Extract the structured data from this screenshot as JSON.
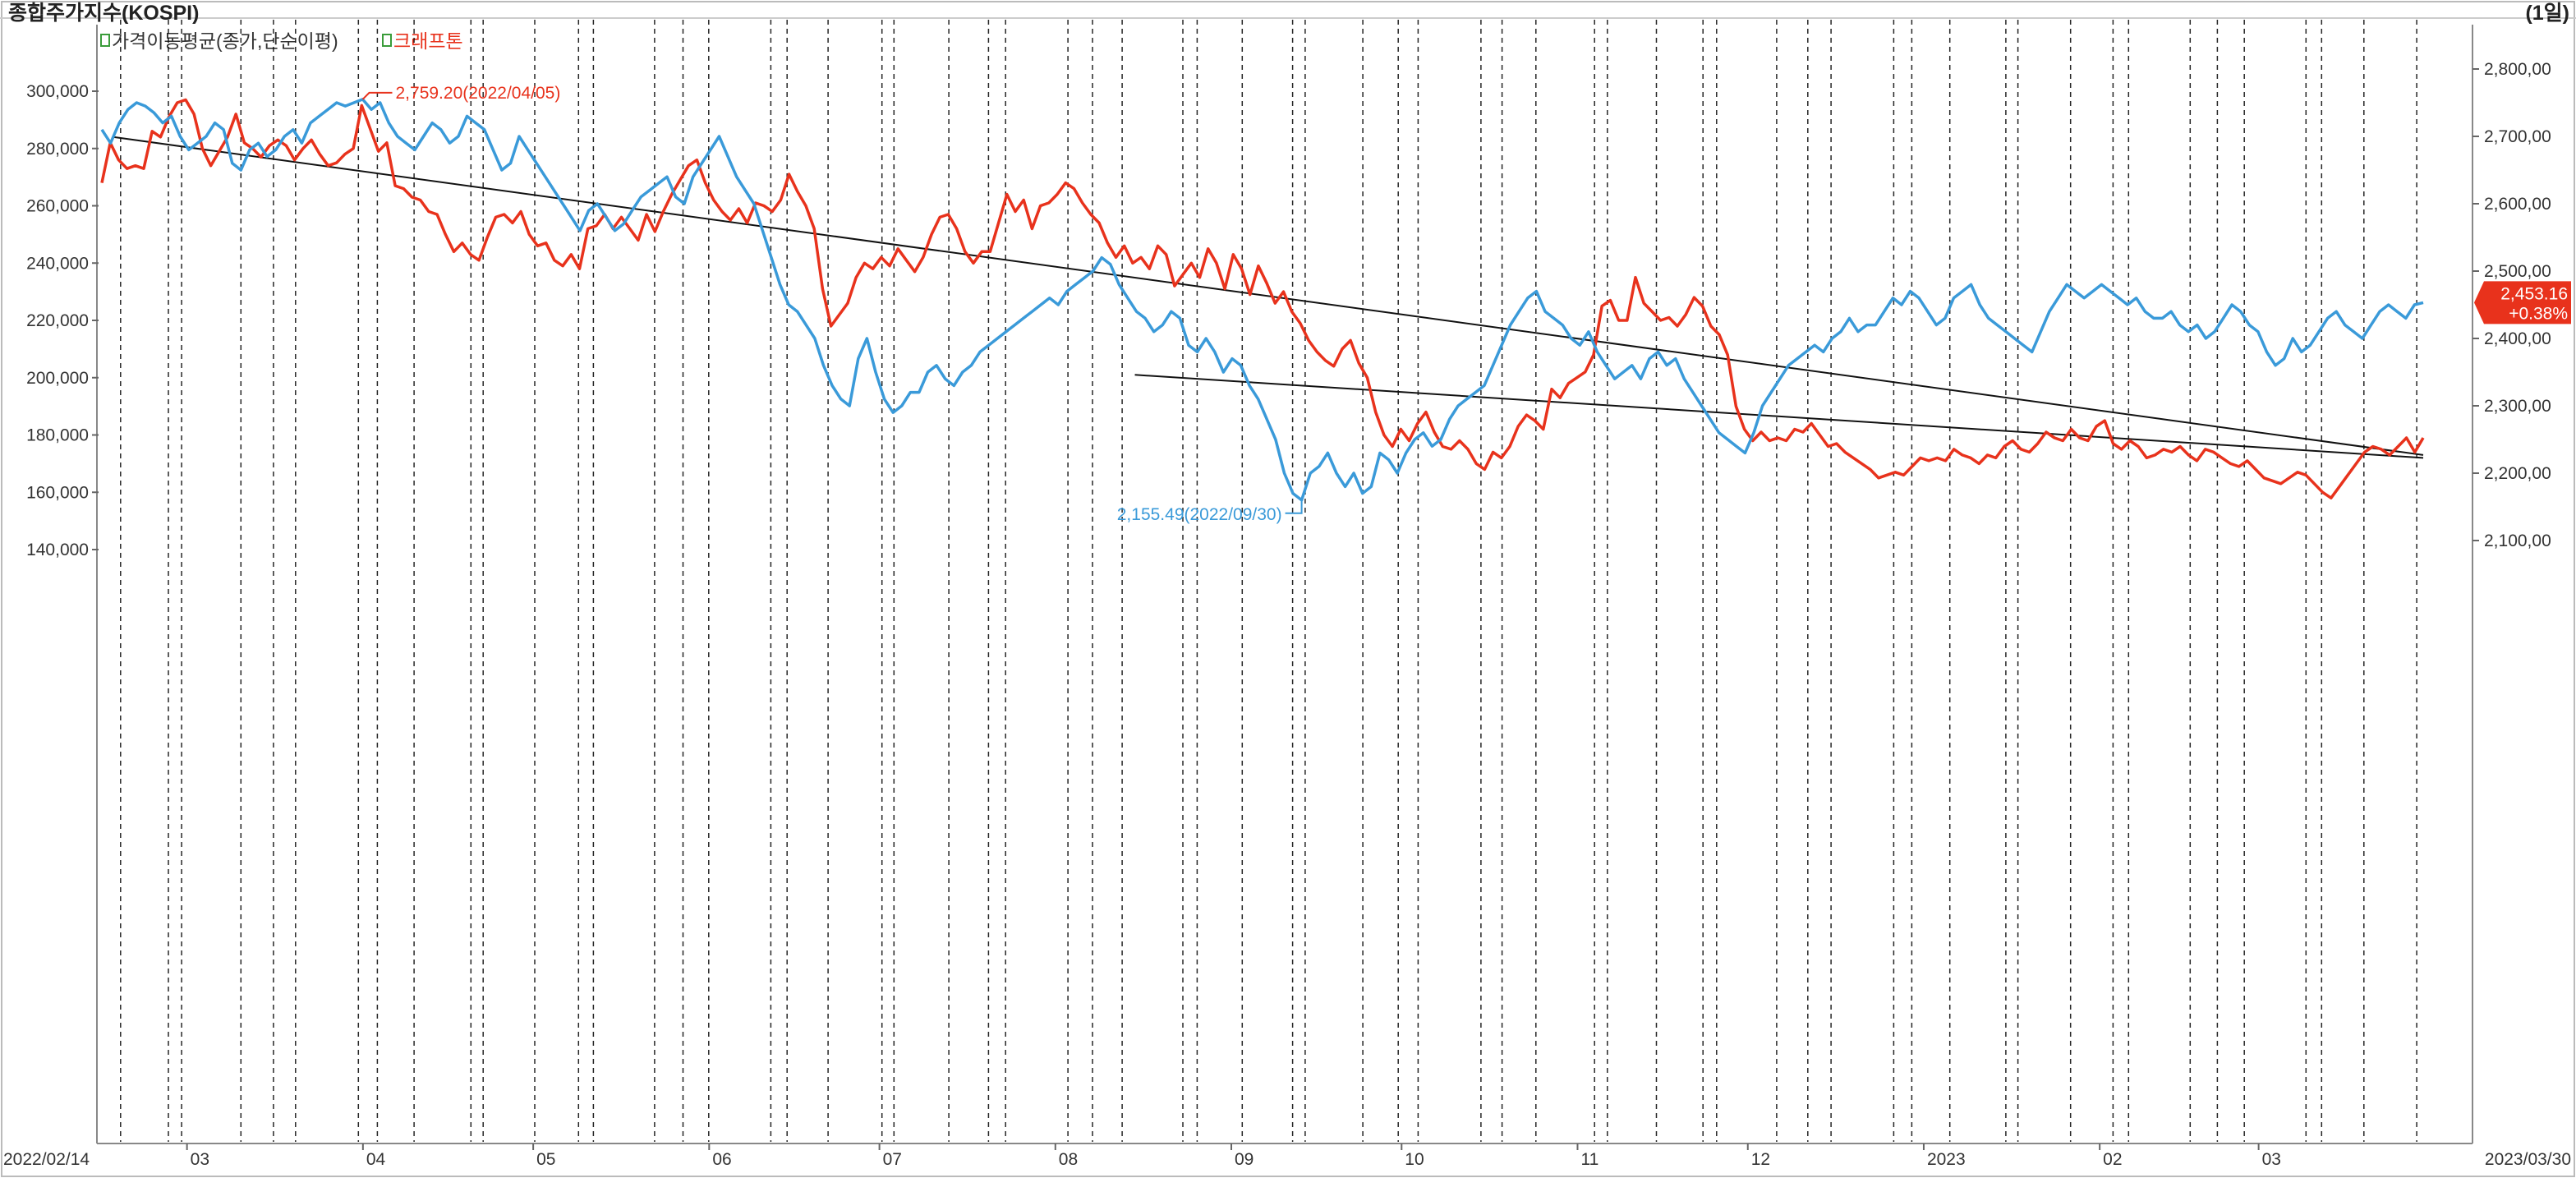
{
  "header": {
    "title": "종합주가지수(KOSPI)",
    "period": "(1일)",
    "legend": [
      {
        "label": "가격이동평균(종가,단순이평)",
        "color": "#333333"
      },
      {
        "label": "크래프톤",
        "color": "#e8321c"
      }
    ]
  },
  "colors": {
    "kospi": "#3a9ad9",
    "stock": "#e8321c",
    "trend": "#111111",
    "grid": "#000000"
  },
  "current_badge": {
    "value": "2,453.16",
    "change": "+0.38%",
    "color": "#e8321c"
  },
  "annotations": {
    "high": {
      "text": "2,759.20(2022/04/05)",
      "color": "#e8321c"
    },
    "low": {
      "text": "2,155.49(2022/09/30)",
      "color": "#3a9ad9"
    }
  },
  "chart_data": {
    "type": "line",
    "x_range": [
      "2022/02/14",
      "2023/03/30"
    ],
    "x_start_label": "2022/02/14",
    "x_end_label": "2023/03/30",
    "month_labels": [
      "03",
      "04",
      "05",
      "06",
      "07",
      "08",
      "09",
      "10",
      "11",
      "12",
      "2023",
      "02",
      "03"
    ],
    "left_axis": {
      "ticks": [
        "300,000",
        "280,000",
        "260,000",
        "240,000",
        "220,000",
        "200,000",
        "180,000",
        "160,000",
        "140,000"
      ],
      "range": [
        135000,
        320000
      ]
    },
    "right_axis": {
      "ticks": [
        "2,800,00",
        "2,700,00",
        "2,600,00",
        "2,500,00",
        "2,400,00",
        "2,300,00",
        "2,200,00",
        "2,100,00"
      ],
      "range": [
        2050,
        2850
      ]
    },
    "series": [
      {
        "name": "크래프톤",
        "axis": "left",
        "values": [
          268000,
          282000,
          276000,
          273000,
          274000,
          273000,
          286000,
          284000,
          291000,
          296000,
          297000,
          292000,
          280000,
          274000,
          279000,
          284000,
          292000,
          282000,
          280000,
          277000,
          281000,
          283000,
          281000,
          276000,
          280000,
          283000,
          278000,
          274000,
          275000,
          278000,
          280000,
          295000,
          287000,
          279000,
          282000,
          267000,
          266000,
          263000,
          262000,
          258000,
          257000,
          250000,
          244000,
          247000,
          243000,
          241000,
          249000,
          256000,
          257000,
          254000,
          258000,
          250000,
          246000,
          247000,
          241000,
          239000,
          243000,
          238000,
          252000,
          253000,
          257000,
          252000,
          256000,
          252000,
          248000,
          257000,
          251000,
          258000,
          264000,
          269000,
          274000,
          276000,
          268000,
          262000,
          258000,
          255000,
          259000,
          254000,
          261000,
          260000,
          258000,
          262000,
          271000,
          265000,
          260000,
          252000,
          231000,
          218000,
          222000,
          226000,
          235000,
          240000,
          238000,
          242000,
          239000,
          245000,
          241000,
          237000,
          242000,
          250000,
          256000,
          257000,
          252000,
          244000,
          240000,
          244000,
          244000,
          254000,
          264000,
          258000,
          262000,
          252000,
          260000,
          261000,
          264000,
          268000,
          266000,
          261000,
          257000,
          254000,
          247000,
          242000,
          246000,
          240000,
          242000,
          238000,
          246000,
          243000,
          232000,
          236000,
          240000,
          235000,
          245000,
          240000,
          231000,
          243000,
          238000,
          229000,
          239000,
          233000,
          226000,
          230000,
          223000,
          219000,
          213000,
          209000,
          206000,
          204000,
          210000,
          213000,
          205000,
          200000,
          188000,
          180000,
          176000,
          182000,
          178000,
          184000,
          188000,
          181000,
          176000,
          175000,
          178000,
          175000,
          170000,
          168000,
          174000,
          172000,
          176000,
          183000,
          187000,
          185000,
          182000,
          196000,
          193000,
          198000,
          200000,
          202000,
          208000,
          225000,
          227000,
          220000,
          220000,
          235000,
          226000,
          223000,
          220000,
          221000,
          218000,
          222000,
          228000,
          225000,
          218000,
          215000,
          208000,
          190000,
          182000,
          178000,
          181000,
          178000,
          179000,
          178000,
          182000,
          181000,
          184000,
          180000,
          176000,
          177000,
          174000,
          172000,
          170000,
          168000,
          165000,
          166000,
          167000,
          166000,
          169000,
          172000,
          171000,
          172000,
          171000,
          175000,
          173000,
          172000,
          170000,
          173000,
          172000,
          176000,
          178000,
          175000,
          174000,
          177000,
          181000,
          179000,
          178000,
          182000,
          179000,
          178000,
          183000,
          185000,
          177000,
          175000,
          178000,
          176000,
          172000,
          173000,
          175000,
          174000,
          176000,
          173000,
          171000,
          175000,
          174000,
          172000,
          170000,
          169000,
          171000,
          168000,
          165000,
          164000,
          163000,
          165000,
          167000,
          166000,
          163000,
          160000,
          158000,
          162000,
          166000,
          170000,
          174000,
          176000,
          175000,
          173000,
          176000,
          179000,
          174000,
          179000
        ]
      },
      {
        "name": "KOSPI",
        "axis": "right",
        "values": [
          2710,
          2690,
          2720,
          2740,
          2750,
          2745,
          2735,
          2720,
          2730,
          2700,
          2680,
          2690,
          2700,
          2720,
          2710,
          2660,
          2650,
          2680,
          2690,
          2670,
          2680,
          2700,
          2710,
          2690,
          2720,
          2730,
          2740,
          2750,
          2745,
          2750,
          2755,
          2740,
          2750,
          2720,
          2700,
          2690,
          2680,
          2700,
          2720,
          2710,
          2690,
          2700,
          2730,
          2720,
          2710,
          2680,
          2650,
          2660,
          2700,
          2680,
          2660,
          2640,
          2620,
          2600,
          2580,
          2560,
          2590,
          2600,
          2580,
          2560,
          2570,
          2590,
          2610,
          2620,
          2630,
          2640,
          2610,
          2600,
          2640,
          2660,
          2680,
          2700,
          2670,
          2640,
          2620,
          2600,
          2560,
          2520,
          2480,
          2450,
          2440,
          2420,
          2400,
          2360,
          2330,
          2310,
          2300,
          2370,
          2400,
          2350,
          2310,
          2290,
          2300,
          2320,
          2320,
          2350,
          2360,
          2340,
          2330,
          2350,
          2360,
          2380,
          2390,
          2400,
          2410,
          2420,
          2430,
          2440,
          2450,
          2460,
          2450,
          2470,
          2480,
          2490,
          2500,
          2520,
          2510,
          2480,
          2460,
          2440,
          2430,
          2410,
          2420,
          2440,
          2430,
          2390,
          2380,
          2400,
          2380,
          2350,
          2370,
          2360,
          2330,
          2310,
          2280,
          2250,
          2200,
          2170,
          2160,
          2200,
          2210,
          2230,
          2200,
          2180,
          2200,
          2170,
          2180,
          2230,
          2220,
          2200,
          2230,
          2250,
          2260,
          2240,
          2250,
          2280,
          2300,
          2310,
          2320,
          2330,
          2360,
          2390,
          2420,
          2440,
          2460,
          2470,
          2440,
          2430,
          2420,
          2400,
          2390,
          2410,
          2380,
          2360,
          2340,
          2350,
          2360,
          2340,
          2370,
          2380,
          2360,
          2370,
          2340,
          2320,
          2300,
          2280,
          2260,
          2250,
          2240,
          2230,
          2260,
          2300,
          2320,
          2340,
          2360,
          2370,
          2380,
          2390,
          2380,
          2400,
          2410,
          2430,
          2410,
          2420,
          2420,
          2440,
          2460,
          2450,
          2470,
          2460,
          2440,
          2420,
          2430,
          2460,
          2470,
          2480,
          2450,
          2430,
          2420,
          2410,
          2400,
          2390,
          2380,
          2410,
          2440,
          2460,
          2480,
          2470,
          2460,
          2470,
          2480,
          2470,
          2460,
          2450,
          2460,
          2440,
          2430,
          2430,
          2440,
          2420,
          2410,
          2420,
          2400,
          2410,
          2430,
          2450,
          2440,
          2420,
          2410,
          2380,
          2360,
          2370,
          2400,
          2380,
          2390,
          2410,
          2430,
          2440,
          2420,
          2410,
          2400,
          2420,
          2440,
          2450,
          2440,
          2430,
          2450,
          2453.16
        ]
      }
    ],
    "trendlines": [
      {
        "from": [
          "2022/02/16",
          284000
        ],
        "to": [
          "2023/03/30",
          173000
        ]
      },
      {
        "from": [
          "2022/08/15",
          201000
        ],
        "to": [
          "2023/03/30",
          172000
        ]
      }
    ],
    "dashed_verticals": 62,
    "grid": false,
    "legend_position": "top-left"
  }
}
